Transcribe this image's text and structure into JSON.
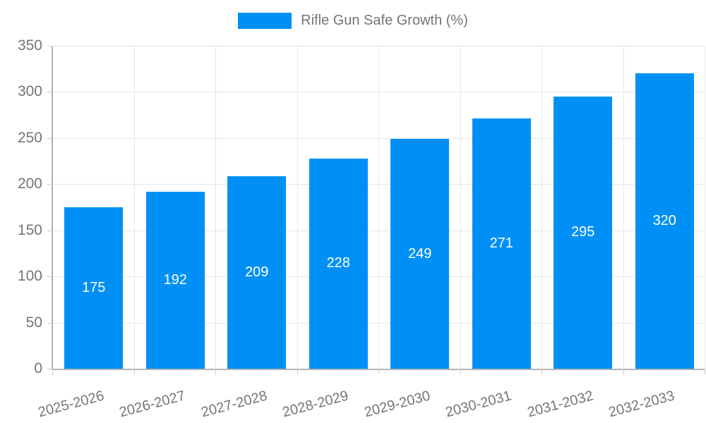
{
  "legend": {
    "label": "Rifle Gun Safe Growth (%)"
  },
  "colors": {
    "bar": "#0090f5",
    "grid": "#e6e6e6",
    "axis": "#b3b3b3",
    "tick": "#cccccc",
    "label_text": "#757575",
    "value_label_text": "#ffffff",
    "background": "#ffffff"
  },
  "chart_data": {
    "type": "bar",
    "title": "Rifle Gun Safe Growth (%)",
    "categories": [
      "2025-2026",
      "2026-2027",
      "2027-2028",
      "2028-2029",
      "2029-2030",
      "2030-2031",
      "2031-2032",
      "2032-2033"
    ],
    "values": [
      175,
      192,
      209,
      228,
      249,
      271,
      295,
      320
    ],
    "xlabel": "",
    "ylabel": "",
    "ylim": [
      0,
      350
    ],
    "ytick_step": 50,
    "ytick_labels": [
      "0",
      "50",
      "100",
      "150",
      "200",
      "250",
      "300",
      "350"
    ],
    "grid": true,
    "legend_position": "top-center",
    "value_labels_position": "inside-center",
    "x_label_rotation_deg": -15
  }
}
